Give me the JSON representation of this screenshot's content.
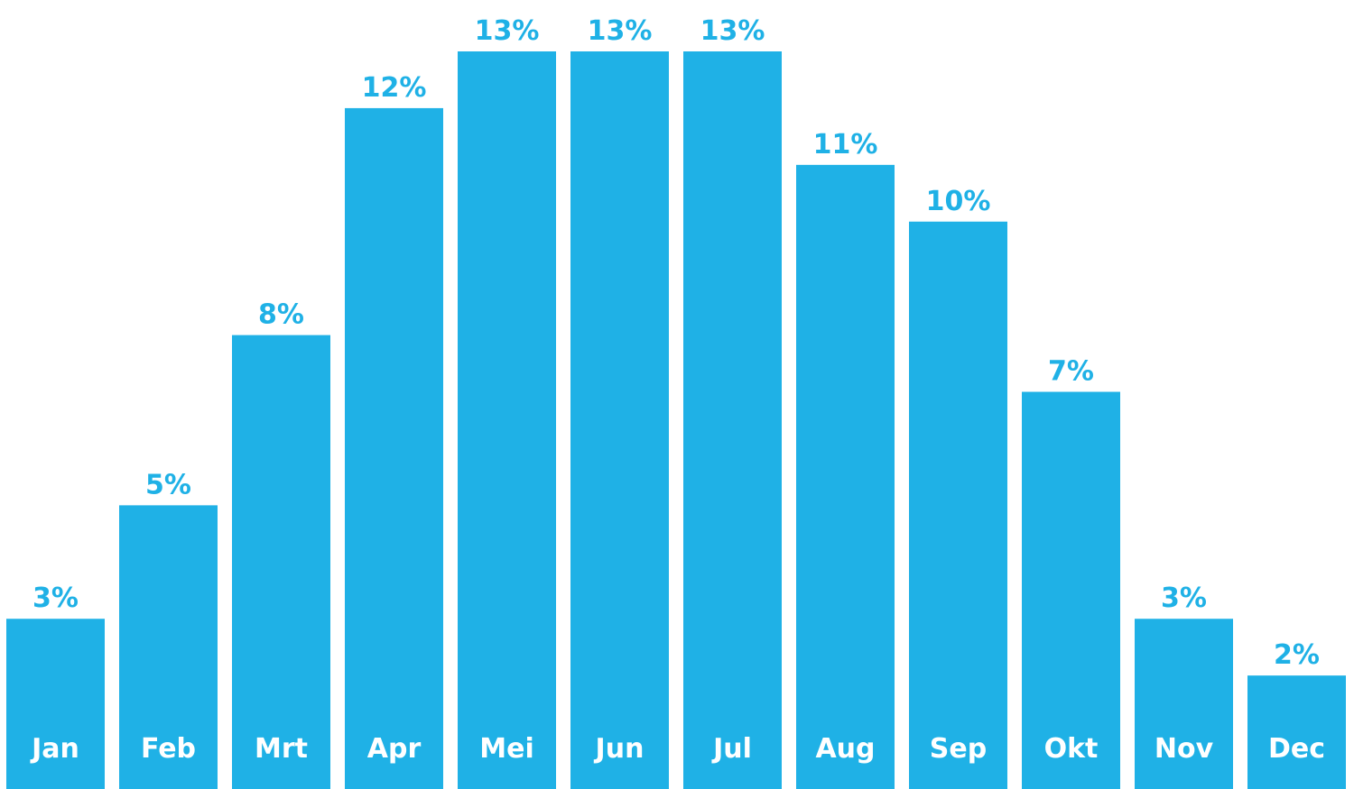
{
  "chart_data": {
    "type": "bar",
    "title": "",
    "xlabel": "",
    "ylabel": "",
    "categories": [
      "Jan",
      "Feb",
      "Mrt",
      "Apr",
      "Mei",
      "Jun",
      "Jul",
      "Aug",
      "Sep",
      "Okt",
      "Nov",
      "Dec"
    ],
    "values": [
      3,
      5,
      8,
      12,
      13,
      13,
      13,
      11,
      10,
      7,
      3,
      2
    ],
    "value_labels": [
      "3%",
      "5%",
      "8%",
      "12%",
      "13%",
      "13%",
      "13%",
      "11%",
      "10%",
      "7%",
      "3%",
      "2%"
    ],
    "ylim": [
      0,
      13
    ],
    "grid": false,
    "bar_color": "#1fb1e6",
    "value_label_color": "#1fb1e6",
    "category_label_color": "#ffffff"
  }
}
